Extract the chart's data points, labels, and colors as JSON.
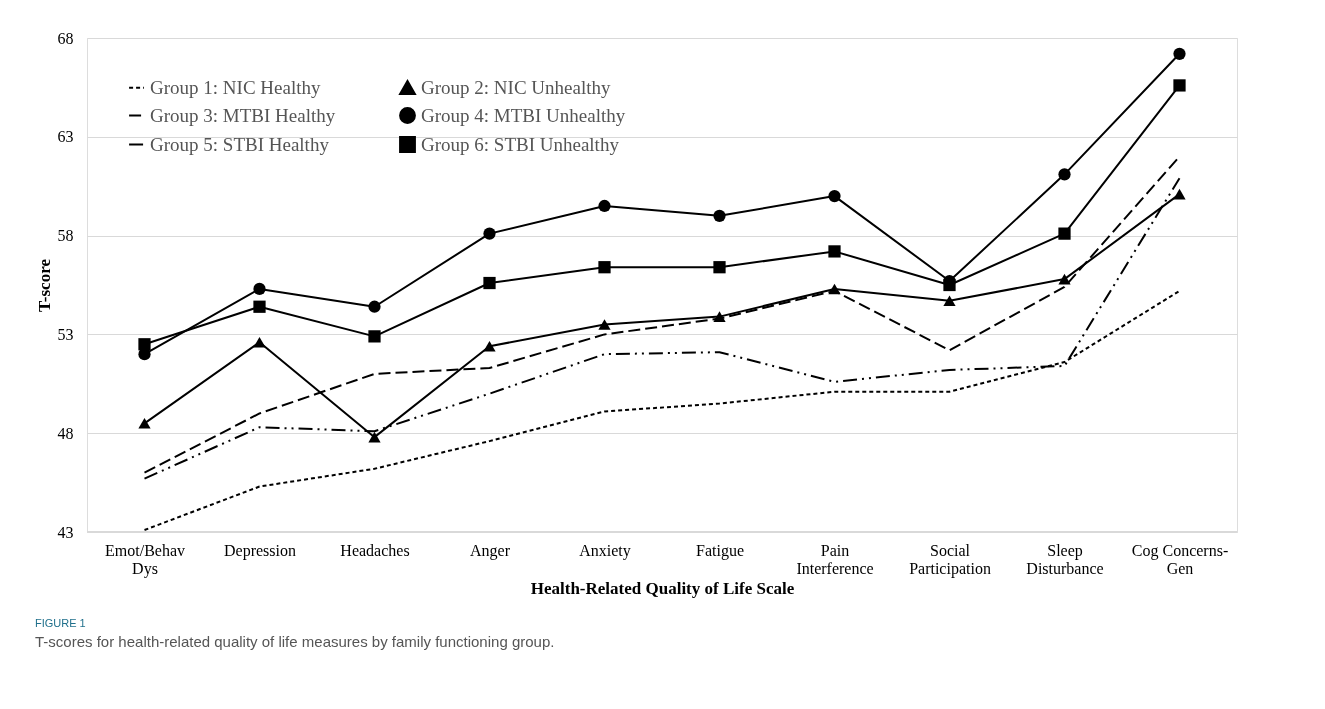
{
  "chart_data": {
    "type": "line",
    "xlabel": "Health-Related Quality of Life Scale",
    "ylabel": "T-score",
    "annotations": [
      "FIGURE 1",
      "T-scores for health-related quality of life measures by family functioning group."
    ],
    "categories": [
      "Emot/Behav Dys",
      "Depression",
      "Headaches",
      "Anger",
      "Anxiety",
      "Fatigue",
      "Pain Interference",
      "Social Participation",
      "Sleep Disturbance",
      "Cog Concerns-Gen"
    ],
    "series": [
      {
        "name": "Group 1: NIC Healthy",
        "color": "#000000",
        "line_style": "dotted",
        "marker": "none",
        "values": [
          43.1,
          45.3,
          46.2,
          47.6,
          49.1,
          49.5,
          50.1,
          50.1,
          51.6,
          55.2
        ]
      },
      {
        "name": "Group 2: NIC Unhealthy",
        "color": "#000000",
        "line_style": "solid",
        "marker": "triangle",
        "values": [
          48.5,
          52.6,
          47.8,
          52.4,
          53.5,
          53.9,
          55.3,
          54.7,
          55.8,
          60.1
        ]
      },
      {
        "name": "Group 3: MTBI Healthy",
        "color": "#000000",
        "line_style": "dashed",
        "marker": "none",
        "values": [
          46.0,
          49.0,
          51.0,
          51.3,
          53.0,
          53.8,
          55.2,
          52.2,
          55.4,
          62.0
        ]
      },
      {
        "name": "Group 4: MTBI Unhealthy",
        "color": "#000000",
        "line_style": "solid",
        "marker": "circle",
        "values": [
          52.0,
          55.3,
          54.4,
          58.1,
          59.5,
          59.0,
          60.0,
          55.7,
          61.1,
          67.2
        ]
      },
      {
        "name": "Group 5: STBI Healthy",
        "color": "#000000",
        "line_style": "dashdotdot",
        "marker": "none",
        "values": [
          45.7,
          48.3,
          48.1,
          50.0,
          52.0,
          52.1,
          50.6,
          51.2,
          51.4,
          60.9
        ]
      },
      {
        "name": "Group 6: STBI Unhealthy",
        "color": "#000000",
        "line_style": "solid",
        "marker": "square",
        "values": [
          52.5,
          54.4,
          52.9,
          55.6,
          56.4,
          56.4,
          57.2,
          55.5,
          58.1,
          65.6
        ]
      }
    ],
    "ylim": [
      43,
      68
    ],
    "yticks": [
      43,
      48,
      53,
      58,
      63,
      68
    ],
    "grid": "y",
    "legend": "top left"
  }
}
